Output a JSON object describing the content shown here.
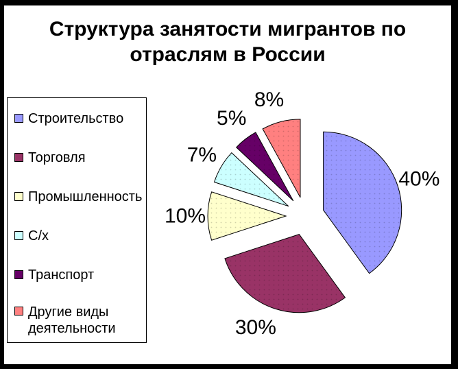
{
  "title": "Структура занятости мигрантов по отраслям в России",
  "frame_color": "#000000",
  "background_color": "#FFFFFF",
  "chart_data": {
    "type": "pie",
    "title": "Структура занятости мигрантов по отраслям в России",
    "categories": [
      "Строительство",
      "Торговля",
      "Промышленность",
      "С/х",
      "Транспорт",
      "Другие виды деятельности"
    ],
    "values": [
      40,
      30,
      10,
      7,
      5,
      8
    ],
    "unit": "%",
    "labels": [
      "40%",
      "30%",
      "10%",
      "7%",
      "5%",
      "8%"
    ],
    "colors": [
      "#9999FF",
      "#993366",
      "#FFFFCC",
      "#CCFFFF",
      "#660066",
      "#FF8080"
    ],
    "outline_color": "#000000",
    "label_color": "#000000",
    "legend_position": "left",
    "start_angle_deg_from_top": 0,
    "direction": "clockwise",
    "exploded": true
  }
}
